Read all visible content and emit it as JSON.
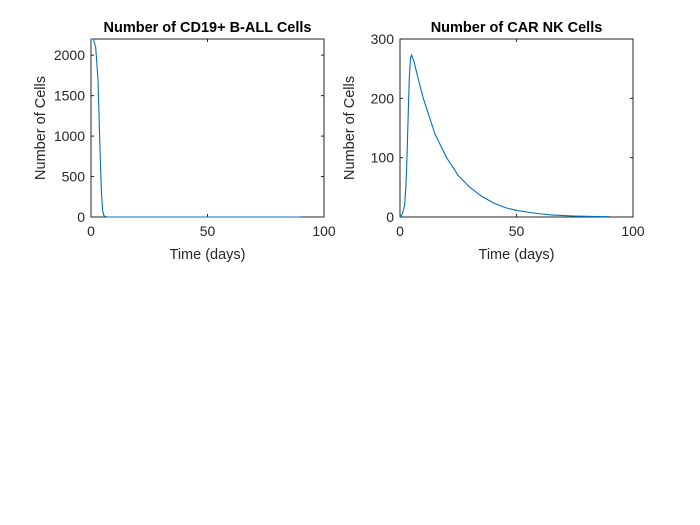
{
  "chart_data": [
    {
      "type": "line",
      "title": "Number of CD19+ B-ALL Cells",
      "xlabel": "Time (days)",
      "ylabel": "Number of Cells",
      "xlim": [
        0,
        100
      ],
      "ylim": [
        0,
        2200
      ],
      "xticks": [
        0,
        50,
        100
      ],
      "yticks": [
        0,
        500,
        1000,
        1500,
        2000
      ],
      "xtick_labels": [
        "0",
        "50",
        "100"
      ],
      "ytick_labels": [
        "0",
        "500",
        "1000",
        "1500",
        "2000"
      ],
      "grid": false,
      "color": "#0072BD",
      "x": [
        0,
        1,
        2,
        3,
        3.5,
        4,
        4.5,
        5,
        5.5,
        6,
        7,
        10,
        20,
        40,
        60,
        80,
        90
      ],
      "y": [
        2200,
        2200,
        2100,
        1700,
        1200,
        700,
        300,
        80,
        20,
        5,
        0,
        0,
        0,
        0,
        0,
        0,
        0
      ]
    },
    {
      "type": "line",
      "title": "Number of CAR NK Cells",
      "xlabel": "Time (days)",
      "ylabel": "Number of Cells",
      "xlim": [
        0,
        100
      ],
      "ylim": [
        0,
        300
      ],
      "xticks": [
        0,
        50,
        100
      ],
      "yticks": [
        0,
        100,
        200,
        300
      ],
      "xtick_labels": [
        "0",
        "50",
        "100"
      ],
      "ytick_labels": [
        "0",
        "100",
        "200",
        "300"
      ],
      "grid": false,
      "color": "#0072BD",
      "x": [
        0,
        1,
        2,
        2.5,
        3,
        3.5,
        4,
        4.5,
        5,
        6,
        8,
        10,
        15,
        20,
        25,
        30,
        35,
        40,
        45,
        50,
        55,
        60,
        65,
        70,
        75,
        80,
        85,
        90
      ],
      "y": [
        0,
        5,
        20,
        50,
        100,
        170,
        235,
        268,
        273,
        262,
        230,
        200,
        140,
        100,
        70,
        50,
        35,
        24,
        16,
        11,
        8,
        5.5,
        3.5,
        2.5,
        1.6,
        1.1,
        0.7,
        0.5
      ]
    }
  ]
}
